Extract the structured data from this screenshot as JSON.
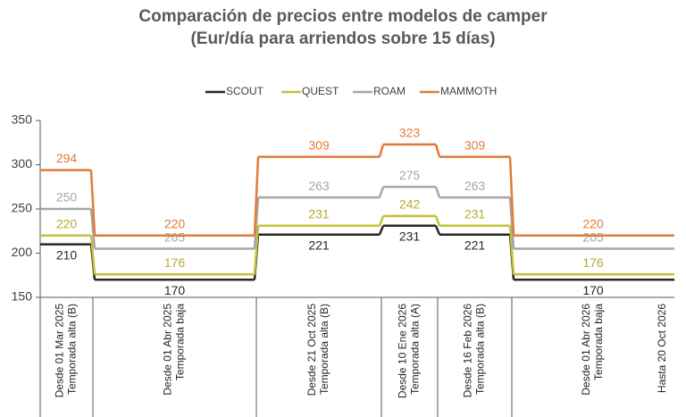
{
  "chart_data": {
    "type": "step",
    "title": [
      "Comparación de precios entre modelos de camper",
      "(Eur/día para arriendos sobre 15 días)"
    ],
    "categories": [
      [
        "Desde 01 Mar 2025",
        "Temporada alta (B)"
      ],
      [
        "Desde 01 Abr 2025",
        "Temporada baja"
      ],
      [
        "Desde 21 Oct 2025",
        "Temporada alta (B)"
      ],
      [
        "Desde 10 Ene 2026",
        "Temporada alta (A)"
      ],
      [
        "Desde 16 Feb 2026",
        "Temporada alta (B)"
      ],
      [
        "Desde 01 Abr 2026",
        "Temporada baja"
      ]
    ],
    "end_label": "Hasta 20 Oct 2026",
    "series": [
      {
        "name": "SCOUT",
        "color": "#262626",
        "label_color": "#262626",
        "values": [
          210,
          170,
          221,
          231,
          221,
          170
        ]
      },
      {
        "name": "QUEST",
        "color": "#c4c13a",
        "label_color": "#b5a92e",
        "values": [
          220,
          176,
          231,
          242,
          231,
          176
        ]
      },
      {
        "name": "ROAM",
        "color": "#a6a6a6",
        "label_color": "#a6a6a6",
        "values": [
          250,
          205,
          263,
          275,
          263,
          205
        ]
      },
      {
        "name": "MAMMOTH",
        "color": "#e07b39",
        "label_color": "#e07b39",
        "values": [
          294,
          220,
          309,
          323,
          309,
          220
        ]
      }
    ],
    "ylim": [
      150,
      350
    ],
    "yticks": [
      150,
      200,
      250,
      300,
      350
    ],
    "grid": false
  }
}
